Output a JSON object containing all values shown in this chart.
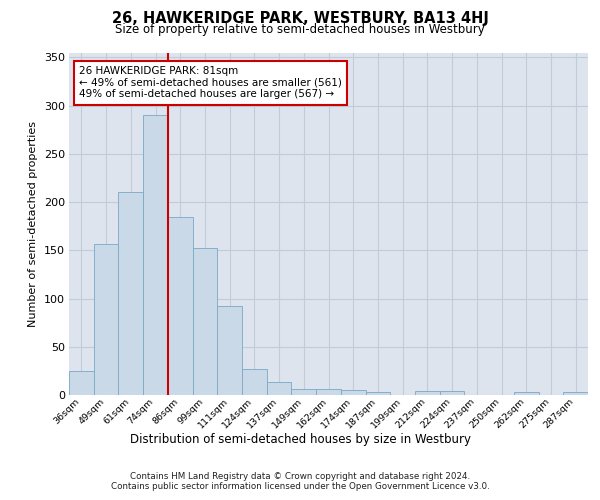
{
  "title": "26, HAWKERIDGE PARK, WESTBURY, BA13 4HJ",
  "subtitle": "Size of property relative to semi-detached houses in Westbury",
  "xlabel": "Distribution of semi-detached houses by size in Westbury",
  "ylabel": "Number of semi-detached properties",
  "categories": [
    "36sqm",
    "49sqm",
    "61sqm",
    "74sqm",
    "86sqm",
    "99sqm",
    "111sqm",
    "124sqm",
    "137sqm",
    "149sqm",
    "162sqm",
    "174sqm",
    "187sqm",
    "199sqm",
    "212sqm",
    "224sqm",
    "237sqm",
    "250sqm",
    "262sqm",
    "275sqm",
    "287sqm"
  ],
  "values": [
    25,
    157,
    210,
    290,
    185,
    152,
    92,
    27,
    13,
    6,
    6,
    5,
    3,
    0,
    4,
    4,
    0,
    0,
    3,
    0,
    3
  ],
  "bar_color": "#c9d9e8",
  "bar_edge_color": "#7aa8c8",
  "property_line_color": "#cc0000",
  "annotation_text": "26 HAWKERIDGE PARK: 81sqm\n← 49% of semi-detached houses are smaller (561)\n49% of semi-detached houses are larger (567) →",
  "annotation_box_color": "#ffffff",
  "annotation_box_edge_color": "#cc0000",
  "ylim": [
    0,
    355
  ],
  "yticks": [
    0,
    50,
    100,
    150,
    200,
    250,
    300,
    350
  ],
  "grid_color": "#c0ccd8",
  "background_color": "#dde4ee",
  "footer_line1": "Contains HM Land Registry data © Crown copyright and database right 2024.",
  "footer_line2": "Contains public sector information licensed under the Open Government Licence v3.0."
}
